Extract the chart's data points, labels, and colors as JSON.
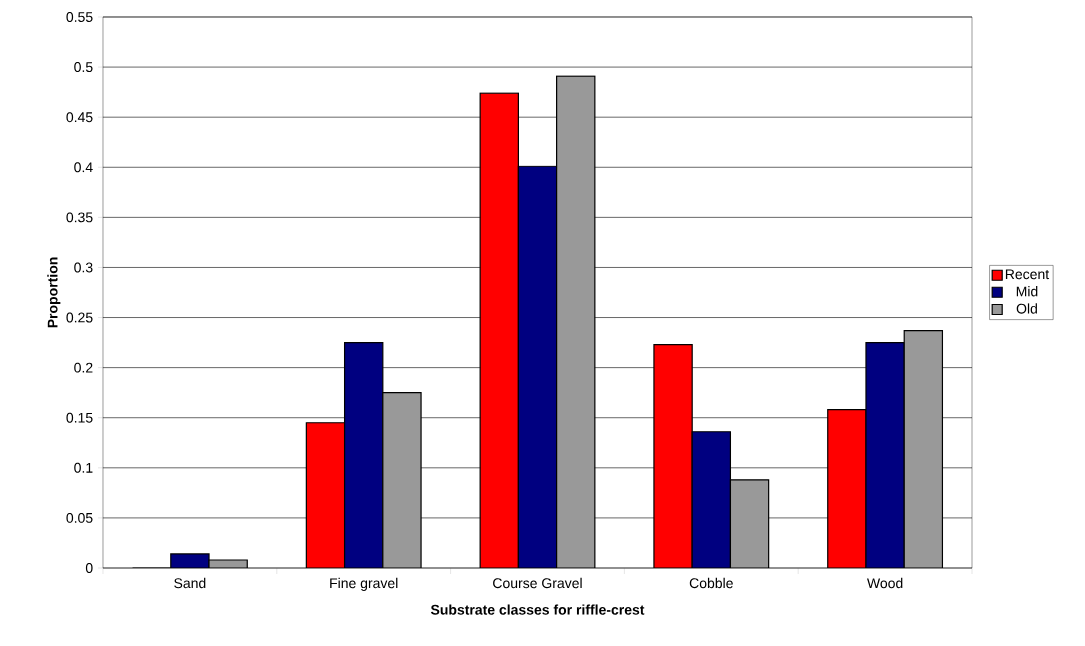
{
  "chart_data": {
    "type": "bar",
    "xlabel": "Substrate classes for riffle-crest",
    "ylabel": "Proportion",
    "categories": [
      "Sand",
      "Fine gravel",
      "Course Gravel",
      "Cobble",
      "Wood"
    ],
    "series": [
      {
        "name": "Recent",
        "color": "#ff0000",
        "values": [
          0,
          0.145,
          0.474,
          0.223,
          0.158
        ]
      },
      {
        "name": "Mid",
        "color": "#000080",
        "values": [
          0.014,
          0.225,
          0.401,
          0.136,
          0.225
        ]
      },
      {
        "name": "Old",
        "color": "#999999",
        "values": [
          0.008,
          0.175,
          0.491,
          0.088,
          0.237
        ]
      }
    ],
    "ylim": [
      0,
      0.55
    ],
    "yticks": [
      0,
      0.05,
      0.1,
      0.15,
      0.2,
      0.25,
      0.3,
      0.35,
      0.4,
      0.45,
      0.5,
      0.55
    ],
    "grid": "y",
    "legend": "right"
  }
}
